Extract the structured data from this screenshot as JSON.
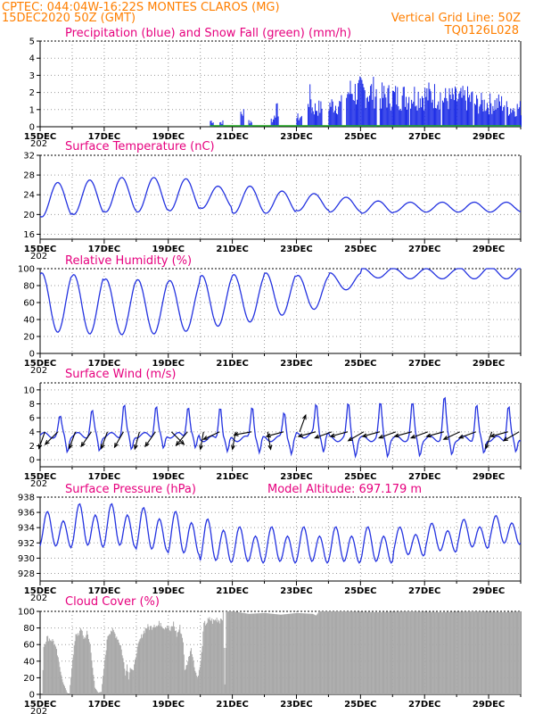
{
  "header": {
    "line1": "CPTEC:   044:04W-16:22S   MONTES CLAROS (MG)",
    "line2": "15DEC2020 50Z (GMT)",
    "grid_note": "Vertical Grid Line: 50Z",
    "code": "TQ0126L028"
  },
  "colors": {
    "header": "#ff7f00",
    "title": "#e6007e",
    "line": "#2433e0",
    "precip": "#1a2ae6",
    "snow": "#1fa81f",
    "cloud": "#a8a8a8",
    "wind_arrow": "#000000",
    "grid": "#9a9a9a"
  },
  "x_axis": {
    "labels": [
      "15DEC",
      "17DEC",
      "19DEC",
      "21DEC",
      "23DEC",
      "25DEC",
      "27DEC",
      "29DEC"
    ],
    "year_fragment": "202"
  },
  "chart_data": [
    {
      "id": "precip",
      "type": "bar",
      "title": "Precipitation (blue) and Snow Fall (green) (mm/h)",
      "ylim": [
        0,
        5
      ],
      "yticks": [
        "0",
        "1",
        "2",
        "3",
        "4",
        "5"
      ],
      "days": 15,
      "grid": true,
      "series": [
        {
          "name": "Precipitation",
          "segments": [
            {
              "x0": 5.3,
              "x1": 5.4,
              "peak": 0.5
            },
            {
              "x0": 5.6,
              "x1": 5.7,
              "peak": 0.4
            },
            {
              "x0": 6.25,
              "x1": 6.35,
              "peak": 1.2
            },
            {
              "x0": 6.5,
              "x1": 6.6,
              "peak": 0.5
            },
            {
              "x0": 7.2,
              "x1": 7.3,
              "peak": 0.6
            },
            {
              "x0": 7.3,
              "x1": 7.45,
              "peak": 1.4
            },
            {
              "x0": 8.0,
              "x1": 8.15,
              "peak": 0.8
            },
            {
              "x0": 8.35,
              "x1": 8.45,
              "peak": 2.5
            },
            {
              "x0": 8.45,
              "x1": 8.8,
              "peak": 1.6
            },
            {
              "x0": 9.0,
              "x1": 9.4,
              "peak": 1.9
            },
            {
              "x0": 9.55,
              "x1": 10.5,
              "peak": 3.0
            },
            {
              "x0": 10.6,
              "x1": 11.5,
              "peak": 2.6
            },
            {
              "x0": 11.55,
              "x1": 12.5,
              "peak": 2.7
            },
            {
              "x0": 12.55,
              "x1": 13.5,
              "peak": 2.4
            },
            {
              "x0": 13.55,
              "x1": 14.5,
              "peak": 2.0
            },
            {
              "x0": 14.55,
              "x1": 15.0,
              "peak": 1.6
            }
          ]
        }
      ]
    },
    {
      "id": "temp",
      "type": "line",
      "title": "Surface Temperature (nC)",
      "ylim": [
        15,
        32
      ],
      "yticks": [
        "16",
        "20",
        "24",
        "28",
        "32"
      ],
      "days": 15,
      "grid": true,
      "series": [
        {
          "amplitude": [
            7,
            7,
            7,
            7,
            6.5,
            4.5,
            5.5,
            4.5,
            3.5,
            3.0,
            2.5,
            2.0,
            2.0,
            2.0,
            2.0,
            2.0
          ],
          "mean": [
            23.0,
            23.5,
            24.0,
            24.0,
            24.0,
            23.5,
            23.0,
            22.5,
            22.5,
            22.0,
            21.5,
            21.5,
            21.5,
            21.5,
            21.5,
            21.5
          ],
          "peak_hour": 0.55,
          "start_value": 21.5
        }
      ]
    },
    {
      "id": "rh",
      "type": "line",
      "title": "Relative Humidity (%)",
      "ylim": [
        0,
        100
      ],
      "yticks": [
        "0",
        "20",
        "40",
        "60",
        "80",
        "100"
      ],
      "days": 15,
      "grid": true,
      "series": [
        {
          "mean": [
            60,
            58,
            55,
            55,
            56,
            62,
            65,
            70,
            72,
            85,
            95,
            94,
            94,
            95,
            95,
            96
          ],
          "amplitude": [
            35,
            35,
            33,
            32,
            30,
            30,
            28,
            25,
            20,
            10,
            6,
            6,
            6,
            7,
            7,
            5
          ],
          "min_hour": 0.55,
          "start_value": 63
        }
      ]
    },
    {
      "id": "wind",
      "type": "line",
      "title": "Surface Wind (m/s)",
      "ylim": [
        -1,
        11
      ],
      "yticks": [
        "0",
        "2",
        "4",
        "6",
        "8",
        "10"
      ],
      "days": 15,
      "grid": true,
      "series": [
        {
          "base": [
            3.5,
            3.5,
            3.5,
            3.5,
            3.5,
            3.0,
            3.0,
            3.0,
            3.5,
            3.0,
            3.0,
            3.0,
            3.0,
            3.0,
            3.0,
            3.0
          ],
          "peak": [
            6,
            7,
            8,
            8,
            8,
            8,
            8,
            7,
            8,
            8,
            8,
            8,
            9,
            8,
            8,
            8
          ],
          "start_value": 3.5
        }
      ],
      "arrows": [
        {
          "day": 0.15,
          "dir": 200
        },
        {
          "day": 0.55,
          "dir": 225
        },
        {
          "day": 1.1,
          "dir": 200
        },
        {
          "day": 1.6,
          "dir": 215
        },
        {
          "day": 2.1,
          "dir": 200
        },
        {
          "day": 2.6,
          "dir": 210
        },
        {
          "day": 3.1,
          "dir": 195
        },
        {
          "day": 3.6,
          "dir": 215
        },
        {
          "day": 4.1,
          "dir": 135
        },
        {
          "day": 4.6,
          "dir": 220
        },
        {
          "day": 5.1,
          "dir": 190
        },
        {
          "day": 5.6,
          "dir": 245
        },
        {
          "day": 6.1,
          "dir": 190
        },
        {
          "day": 6.6,
          "dir": 260
        },
        {
          "day": 7.1,
          "dir": 170
        },
        {
          "day": 7.6,
          "dir": 255
        },
        {
          "day": 8.1,
          "dir": 20
        },
        {
          "day": 8.6,
          "dir": 255
        },
        {
          "day": 9.1,
          "dir": 250
        },
        {
          "day": 9.6,
          "dir": 255
        },
        {
          "day": 10.1,
          "dir": 240
        },
        {
          "day": 10.6,
          "dir": 255
        },
        {
          "day": 11.1,
          "dir": 250
        },
        {
          "day": 11.6,
          "dir": 255
        },
        {
          "day": 12.1,
          "dir": 250
        },
        {
          "day": 12.6,
          "dir": 255
        },
        {
          "day": 13.1,
          "dir": 245
        },
        {
          "day": 13.6,
          "dir": 250
        },
        {
          "day": 14.1,
          "dir": 200
        },
        {
          "day": 14.6,
          "dir": 255
        },
        {
          "day": 14.95,
          "dir": 240
        }
      ]
    },
    {
      "id": "pres",
      "type": "line",
      "title": "Surface Pressure (hPa)",
      "subtitle": "Model Altitude: 697.179  m",
      "ylim": [
        927,
        938
      ],
      "yticks": [
        "928",
        "930",
        "932",
        "934",
        "936",
        "938"
      ],
      "days": 15,
      "grid": true,
      "series": [
        {
          "mean": [
            933.5,
            934.0,
            934.0,
            933.5,
            933.0,
            932.0,
            931.5,
            931.5,
            931.5,
            931.5,
            931.5,
            932.0,
            932.5,
            933.0,
            933.5,
            933.5
          ],
          "amplitude": [
            2.5,
            3.0,
            3.0,
            3.0,
            3.0,
            3.0,
            2.5,
            2.5,
            2.5,
            2.5,
            2.5,
            2.0,
            2.0,
            2.0,
            2.0,
            2.0
          ],
          "start_value": 932.5
        }
      ]
    },
    {
      "id": "cloud",
      "type": "area",
      "title": "Cloud Cover (%)",
      "ylim": [
        0,
        100
      ],
      "yticks": [
        "0",
        "20",
        "40",
        "60",
        "80",
        "100"
      ],
      "days": 15,
      "grid": true,
      "series": [
        {
          "name": "Cloud Cover",
          "points": [
            [
              0.0,
              0
            ],
            [
              0.05,
              0
            ],
            [
              0.1,
              62
            ],
            [
              0.2,
              72
            ],
            [
              0.3,
              70
            ],
            [
              0.4,
              68
            ],
            [
              0.5,
              55
            ],
            [
              0.55,
              45
            ],
            [
              0.6,
              35
            ],
            [
              0.7,
              15
            ],
            [
              0.8,
              5
            ],
            [
              0.85,
              0
            ],
            [
              0.9,
              0
            ],
            [
              1.0,
              45
            ],
            [
              1.1,
              74
            ],
            [
              1.2,
              78
            ],
            [
              1.3,
              82
            ],
            [
              1.35,
              70
            ],
            [
              1.45,
              78
            ],
            [
              1.55,
              62
            ],
            [
              1.6,
              45
            ],
            [
              1.65,
              25
            ],
            [
              1.7,
              8
            ],
            [
              1.8,
              2
            ],
            [
              1.9,
              3
            ],
            [
              2.0,
              42
            ],
            [
              2.1,
              75
            ],
            [
              2.2,
              82
            ],
            [
              2.3,
              78
            ],
            [
              2.4,
              72
            ],
            [
              2.5,
              62
            ],
            [
              2.6,
              40
            ],
            [
              2.65,
              25
            ],
            [
              2.7,
              38
            ],
            [
              2.75,
              20
            ],
            [
              2.8,
              35
            ],
            [
              2.9,
              30
            ],
            [
              3.0,
              55
            ],
            [
              3.1,
              68
            ],
            [
              3.2,
              78
            ],
            [
              3.3,
              85
            ],
            [
              3.45,
              85
            ],
            [
              3.55,
              90
            ],
            [
              3.65,
              86
            ],
            [
              3.75,
              92
            ],
            [
              3.85,
              85
            ],
            [
              3.95,
              88
            ],
            [
              4.05,
              80
            ],
            [
              4.15,
              90
            ],
            [
              4.25,
              75
            ],
            [
              4.35,
              85
            ],
            [
              4.45,
              68
            ],
            [
              4.5,
              30
            ],
            [
              4.6,
              42
            ],
            [
              4.7,
              60
            ],
            [
              4.8,
              35
            ],
            [
              4.9,
              20
            ],
            [
              5.0,
              40
            ],
            [
              5.1,
              88
            ],
            [
              5.2,
              92
            ],
            [
              5.3,
              95
            ],
            [
              5.4,
              92
            ],
            [
              5.5,
              96
            ],
            [
              5.6,
              94
            ],
            [
              5.65,
              98
            ],
            [
              5.7,
              100
            ],
            [
              5.75,
              12
            ],
            [
              5.8,
              100
            ],
            [
              6.0,
              100
            ],
            [
              6.5,
              97
            ],
            [
              7.0,
              98
            ],
            [
              7.5,
              96
            ],
            [
              8.0,
              98
            ],
            [
              8.5,
              97
            ],
            [
              8.6,
              95
            ],
            [
              8.7,
              100
            ],
            [
              9.5,
              100
            ],
            [
              10.5,
              99
            ],
            [
              11.5,
              100
            ],
            [
              12.5,
              99
            ],
            [
              13.5,
              100
            ],
            [
              14.5,
              99
            ],
            [
              15.0,
              100
            ]
          ]
        }
      ]
    }
  ]
}
